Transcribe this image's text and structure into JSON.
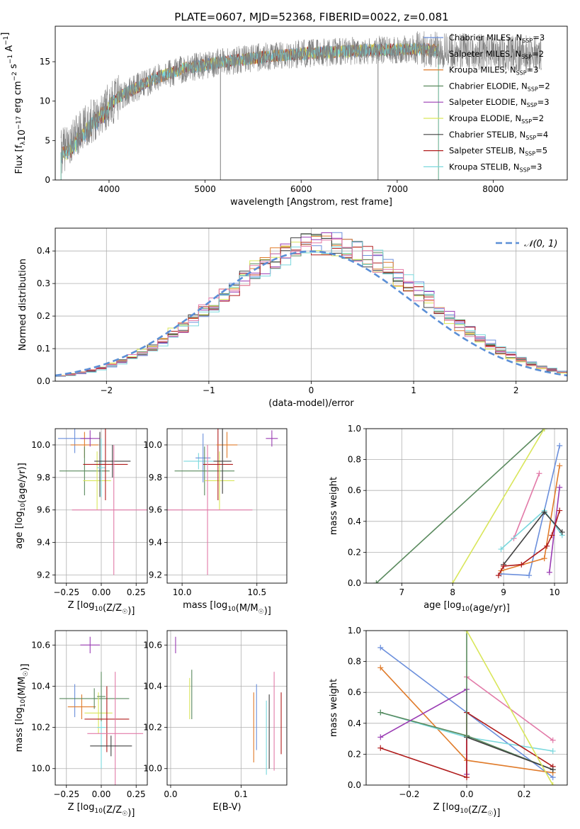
{
  "figure_title": "PLATE=0607, MJD=52368, FIBERID=0022, z=0.081",
  "colors": {
    "Chabrier MILES": "#6b8fdc",
    "Salpeter MILES": "#8e8e8e",
    "Kroupa MILES": "#e07b2a",
    "Chabrier ELODIE": "#5a8a5e",
    "Salpeter ELODIE": "#9a3cb3",
    "Kroupa ELODIE": "#d9e65a",
    "Chabrier STELIB": "#404040",
    "Salpeter STELIB": "#b01c1c",
    "Kroupa STELIB": "#7ad8dd",
    "pink": "#e27aa8",
    "spectrum": "#808080"
  },
  "chart_data": [
    {
      "id": "spectrum",
      "type": "line",
      "title": "PLATE=0607, MJD=52368, FIBERID=0022, z=0.081",
      "xlabel": "wavelength [Angstrom, rest frame]",
      "ylabel_parts": [
        "Flux [f",
        "λ",
        "10",
        "−17",
        " erg cm",
        "−2",
        " s",
        "−1",
        " A",
        "−1",
        "]"
      ],
      "xlim": [
        3440,
        8770
      ],
      "ylim": [
        0,
        19.5
      ],
      "xticks": [
        4000,
        5000,
        6000,
        7000,
        8000
      ],
      "yticks": [
        0,
        5,
        10,
        15
      ],
      "grid": false,
      "legend_position": "upper right",
      "legend": [
        {
          "label": "Chabrier MILES",
          "nssp": "3"
        },
        {
          "label": "Salpeter MILES",
          "nssp": "2"
        },
        {
          "label": "Kroupa MILES",
          "nssp": "3"
        },
        {
          "label": "Chabrier ELODIE",
          "nssp": "2"
        },
        {
          "label": "Salpeter ELODIE",
          "nssp": "3"
        },
        {
          "label": "Kroupa ELODIE",
          "nssp": "2"
        },
        {
          "label": "Chabrier STELIB",
          "nssp": "4"
        },
        {
          "label": "Salpeter STELIB",
          "nssp": "5"
        },
        {
          "label": "Kroupa STELIB",
          "nssp": "3"
        }
      ],
      "continuum": {
        "x": [
          3500,
          3700,
          3900,
          4100,
          4300,
          4500,
          4800,
          5200,
          5600,
          6000,
          6400,
          6800,
          7200,
          7500,
          8000,
          8500
        ],
        "y": [
          3.5,
          6.0,
          8.5,
          10.5,
          11.8,
          13.0,
          14.2,
          15.0,
          15.6,
          16.0,
          16.3,
          16.5,
          16.6,
          16.4,
          16.2,
          16.0
        ]
      },
      "data_range": [
        3500,
        8500
      ],
      "model_range": [
        3500,
        7430
      ],
      "spikes": [
        5160,
        6800
      ]
    },
    {
      "id": "residuals",
      "type": "histogram",
      "xlabel": "(data-model)/error",
      "ylabel": "Normed distribution",
      "xlim": [
        -2.5,
        2.5
      ],
      "ylim": [
        0,
        0.47
      ],
      "xticks": [
        -2,
        -1,
        0,
        1,
        2
      ],
      "yticks": [
        0.0,
        0.1,
        0.2,
        0.3,
        0.4
      ],
      "grid": true,
      "legend_position": "upper right",
      "reference_curve": "𝒩(0, 1)",
      "bin_width": 0.1
    },
    {
      "id": "age_vs_Z",
      "type": "scatter",
      "xlabel_parts": [
        "Z [log",
        "10",
        "(Z/Z",
        "☉",
        ")]"
      ],
      "ylabel_parts": [
        "age  [log",
        "10",
        "(age/yr)]"
      ],
      "xlim": [
        -0.33,
        0.33
      ],
      "ylim": [
        9.15,
        10.1
      ],
      "xticks": [
        -0.25,
        0.0,
        0.25
      ],
      "xticklabels": [
        "−0.25",
        "0.00",
        "0.25"
      ],
      "yticks": [
        9.2,
        9.4,
        9.6,
        9.8,
        10.0
      ],
      "grid": true,
      "points": [
        {
          "model": "Chabrier MILES",
          "x": -0.19,
          "xerr": 0.12,
          "y": 10.04,
          "yerr": 0.09
        },
        {
          "model": "Kroupa MILES",
          "x": -0.12,
          "xerr": 0.1,
          "y": 10.0,
          "yerr": 0.08
        },
        {
          "model": "Chabrier ELODIE",
          "x": -0.12,
          "xerr": 0.18,
          "y": 9.84,
          "yerr": 0.15
        },
        {
          "model": "Salpeter ELODIE",
          "x": -0.08,
          "xerr": 0.07,
          "y": 10.04,
          "yerr": 0.05
        },
        {
          "model": "Kroupa ELODIE",
          "x": -0.03,
          "xerr": 0.1,
          "y": 9.78,
          "yerr": 0.18
        },
        {
          "model": "Chabrier STELIB",
          "x": -0.01,
          "xerr": 0.04,
          "y": 9.88,
          "yerr": 0.2
        },
        {
          "model": "Kroupa STELIB",
          "x": 0.0,
          "xerr": 0.03,
          "y": 9.86,
          "yerr": 0.18
        },
        {
          "model": "Salpeter STELIB",
          "x": 0.03,
          "xerr": 0.16,
          "y": 9.88,
          "yerr": 0.22
        },
        {
          "model": "Chabrier STELIB",
          "x": 0.08,
          "xerr": 0.13,
          "y": 9.9,
          "yerr": 0.1
        },
        {
          "model": "pink",
          "x": 0.09,
          "xerr": 0.3,
          "y": 9.6,
          "yerr": 0.4
        }
      ]
    },
    {
      "id": "age_vs_mass",
      "type": "scatter",
      "xlabel_parts": [
        "mass [log",
        "10",
        "(M/M",
        "☉",
        ")]"
      ],
      "xlim": [
        9.9,
        10.7
      ],
      "ylim": [
        9.15,
        10.1
      ],
      "xticks": [
        10.0,
        10.5
      ],
      "xticklabels": [
        "10.0",
        "10.5"
      ],
      "yticks": [
        9.2,
        9.4,
        9.6,
        9.8,
        10.0
      ],
      "grid": true,
      "points": [
        {
          "model": "Kroupa STELIB",
          "x": 10.11,
          "xerr": 0.1,
          "y": 9.9,
          "yerr": 0.05
        },
        {
          "model": "Chabrier MILES",
          "x": 10.14,
          "xerr": 0.05,
          "y": 9.92,
          "yerr": 0.15
        },
        {
          "model": "Chabrier ELODIE",
          "x": 10.15,
          "xerr": 0.2,
          "y": 9.84,
          "yerr": 0.15
        },
        {
          "model": "Kroupa ELODIE",
          "x": 10.25,
          "xerr": 0.1,
          "y": 9.78,
          "yerr": 0.18
        },
        {
          "model": "Salpeter STELIB",
          "x": 10.24,
          "xerr": 0.1,
          "y": 9.88,
          "yerr": 0.22
        },
        {
          "model": "Kroupa MILES",
          "x": 10.3,
          "xerr": 0.07,
          "y": 10.0,
          "yerr": 0.08
        },
        {
          "model": "Chabrier STELIB",
          "x": 10.27,
          "xerr": 0.06,
          "y": 9.9,
          "yerr": 0.2
        },
        {
          "model": "pink",
          "x": 10.17,
          "xerr": 0.3,
          "y": 9.6,
          "yerr": 0.4
        },
        {
          "model": "Salpeter ELODIE",
          "x": 10.6,
          "xerr": 0.04,
          "y": 10.04,
          "yerr": 0.05
        }
      ]
    },
    {
      "id": "weights_vs_age",
      "type": "line",
      "xlabel_parts": [
        "age  [log",
        "10",
        "(age/yr)]"
      ],
      "ylabel": "mass weight",
      "xlim": [
        6.3,
        10.25
      ],
      "ylim": [
        0,
        1.0
      ],
      "xticks": [
        7,
        8,
        9,
        10
      ],
      "yticks": [
        0.0,
        0.2,
        0.4,
        0.6,
        0.8,
        1.0
      ],
      "grid": true,
      "series": [
        {
          "model": "Chabrier ELODIE",
          "x": [
            6.5,
            9.8
          ],
          "y": [
            0.0,
            1.0
          ]
        },
        {
          "model": "Kroupa ELODIE",
          "x": [
            8.0,
            9.8
          ],
          "y": [
            0.0,
            1.0
          ]
        },
        {
          "model": "Chabrier MILES",
          "x": [
            8.95,
            9.5,
            10.1
          ],
          "y": [
            0.06,
            0.05,
            0.89
          ]
        },
        {
          "model": "Kroupa MILES",
          "x": [
            8.95,
            9.8,
            10.1
          ],
          "y": [
            0.08,
            0.16,
            0.76
          ]
        },
        {
          "model": "pink",
          "x": [
            9.2,
            9.7
          ],
          "y": [
            0.29,
            0.71
          ]
        },
        {
          "model": "Kroupa STELIB",
          "x": [
            8.95,
            9.8,
            10.15
          ],
          "y": [
            0.22,
            0.47,
            0.31
          ]
        },
        {
          "model": "Chabrier STELIB",
          "x": [
            9.0,
            9.8,
            10.15
          ],
          "y": [
            0.12,
            0.46,
            0.33
          ]
        },
        {
          "model": "Salpeter ELODIE",
          "x": [
            9.9,
            10.1
          ],
          "y": [
            0.07,
            0.62
          ]
        },
        {
          "model": "Salpeter STELIB",
          "x": [
            8.9,
            9.0,
            9.35,
            9.85,
            9.95,
            10.1
          ],
          "y": [
            0.05,
            0.11,
            0.12,
            0.24,
            0.31,
            0.47
          ]
        }
      ]
    },
    {
      "id": "mass_vs_Z",
      "type": "scatter",
      "xlabel_parts": [
        "Z [log",
        "10",
        "(Z/Z",
        "☉",
        ")]"
      ],
      "ylabel_parts": [
        "mass [log",
        "10",
        "(M/M",
        "☉",
        ")]"
      ],
      "xlim": [
        -0.33,
        0.33
      ],
      "ylim": [
        9.92,
        10.67
      ],
      "xticks": [
        -0.25,
        0.0,
        0.25
      ],
      "xticklabels": [
        "−0.25",
        "0.00",
        "0.25"
      ],
      "yticks": [
        10.0,
        10.2,
        10.4,
        10.6
      ],
      "grid": true,
      "points": [
        {
          "model": "Salpeter ELODIE",
          "x": -0.08,
          "xerr": 0.07,
          "y": 10.6,
          "yerr": 0.04
        },
        {
          "model": "Chabrier MILES",
          "x": -0.19,
          "xerr": 0.0,
          "y": 10.33,
          "yerr": 0.08
        },
        {
          "model": "Kroupa MILES",
          "x": -0.14,
          "xerr": 0.1,
          "y": 10.3,
          "yerr": 0.06
        },
        {
          "model": "Chabrier ELODIE",
          "x": -0.05,
          "xerr": 0.25,
          "y": 10.34,
          "yerr": 0.05
        },
        {
          "model": "Kroupa ELODIE",
          "x": -0.02,
          "xerr": 0.1,
          "y": 10.27,
          "yerr": 0.1
        },
        {
          "model": "Kroupa STELIB",
          "x": 0.0,
          "xerr": 0.03,
          "y": 10.2,
          "yerr": 0.2
        },
        {
          "model": "Chabrier ELODIE",
          "x": 0.0,
          "xerr": 0.03,
          "y": 10.35,
          "yerr": 0.12
        },
        {
          "model": "Salpeter STELIB",
          "x": 0.04,
          "xerr": 0.16,
          "y": 10.24,
          "yerr": 0.16
        },
        {
          "model": "pink",
          "x": 0.1,
          "xerr": 0.2,
          "y": 10.17,
          "yerr": 0.3
        },
        {
          "model": "Chabrier STELIB",
          "x": 0.07,
          "xerr": 0.15,
          "y": 10.11,
          "yerr": 0.05
        }
      ]
    },
    {
      "id": "mass_vs_ebv",
      "type": "scatter",
      "xlabel": "E(B-V)",
      "xlim": [
        -0.005,
        0.165
      ],
      "ylim": [
        9.92,
        10.67
      ],
      "xticks": [
        0.0,
        0.1
      ],
      "xticklabels": [
        "0.0",
        "0.1"
      ],
      "yticks": [
        10.0,
        10.2,
        10.4,
        10.6
      ],
      "grid": true,
      "points": [
        {
          "model": "Salpeter ELODIE",
          "x": 0.007,
          "xerr": 0.0,
          "y": 10.6,
          "yerr": 0.04
        },
        {
          "model": "Kroupa ELODIE",
          "x": 0.027,
          "xerr": 0.0,
          "y": 10.34,
          "yerr": 0.1
        },
        {
          "model": "Chabrier ELODIE",
          "x": 0.03,
          "xerr": 0.0,
          "y": 10.36,
          "yerr": 0.12
        },
        {
          "model": "Kroupa MILES",
          "x": 0.118,
          "xerr": 0.0,
          "y": 10.2,
          "yerr": 0.17
        },
        {
          "model": "Chabrier MILES",
          "x": 0.122,
          "xerr": 0.0,
          "y": 10.25,
          "yerr": 0.16
        },
        {
          "model": "Kroupa STELIB",
          "x": 0.136,
          "xerr": 0.0,
          "y": 10.15,
          "yerr": 0.18
        },
        {
          "model": "Chabrier STELIB",
          "x": 0.14,
          "xerr": 0.0,
          "y": 10.18,
          "yerr": 0.18
        },
        {
          "model": "pink",
          "x": 0.147,
          "xerr": 0.0,
          "y": 10.23,
          "yerr": 0.24
        },
        {
          "model": "Salpeter STELIB",
          "x": 0.157,
          "xerr": 0.0,
          "y": 10.22,
          "yerr": 0.15
        }
      ]
    },
    {
      "id": "weights_vs_Z",
      "type": "line",
      "xlabel_parts": [
        "Z [log",
        "10",
        "(Z/Z",
        "☉",
        ")]"
      ],
      "ylabel": "mass weight",
      "xlim": [
        -0.35,
        0.35
      ],
      "ylim": [
        0,
        1.0
      ],
      "xticks": [
        -0.2,
        0.0,
        0.2
      ],
      "xticklabels": [
        "−0.2",
        "0.0",
        "0.2"
      ],
      "yticks": [
        0.0,
        0.2,
        0.4,
        0.6,
        0.8,
        1.0
      ],
      "grid": true,
      "series": [
        {
          "model": "Chabrier MILES",
          "x": [
            -0.3,
            0.0,
            0.3
          ],
          "y": [
            0.89,
            0.47,
            0.05
          ]
        },
        {
          "model": "Kroupa MILES",
          "x": [
            -0.3,
            0.0,
            0.3
          ],
          "y": [
            0.76,
            0.16,
            0.08
          ]
        },
        {
          "model": "Kroupa STELIB",
          "x": [
            -0.3,
            0.0,
            0.3
          ],
          "y": [
            0.47,
            0.31,
            0.22
          ]
        },
        {
          "model": "Chabrier ELODIE",
          "x": [
            -0.3,
            0.0,
            0.3
          ],
          "y": [
            0.47,
            0.32,
            0.1
          ]
        },
        {
          "model": "Salpeter ELODIE",
          "x": [
            -0.3,
            0.0,
            0.0
          ],
          "y": [
            0.31,
            0.62,
            0.07
          ]
        },
        {
          "model": "Salpeter STELIB",
          "x": [
            -0.3,
            0.0,
            0.0,
            0.3
          ],
          "y": [
            0.24,
            0.05,
            0.47,
            0.12
          ]
        },
        {
          "model": "Chabrier STELIB",
          "x": [
            0.0,
            0.3
          ],
          "y": [
            0.31,
            0.1
          ]
        },
        {
          "model": "pink",
          "x": [
            0.0,
            0.3
          ],
          "y": [
            0.7,
            0.29
          ]
        },
        {
          "model": "Chabrier ELODIE",
          "x": [
            0.0,
            0.0
          ],
          "y": [
            0.32,
            1.0
          ]
        },
        {
          "model": "Kroupa ELODIE",
          "x": [
            0.0,
            0.3
          ],
          "y": [
            1.0,
            0.0
          ]
        }
      ]
    }
  ]
}
